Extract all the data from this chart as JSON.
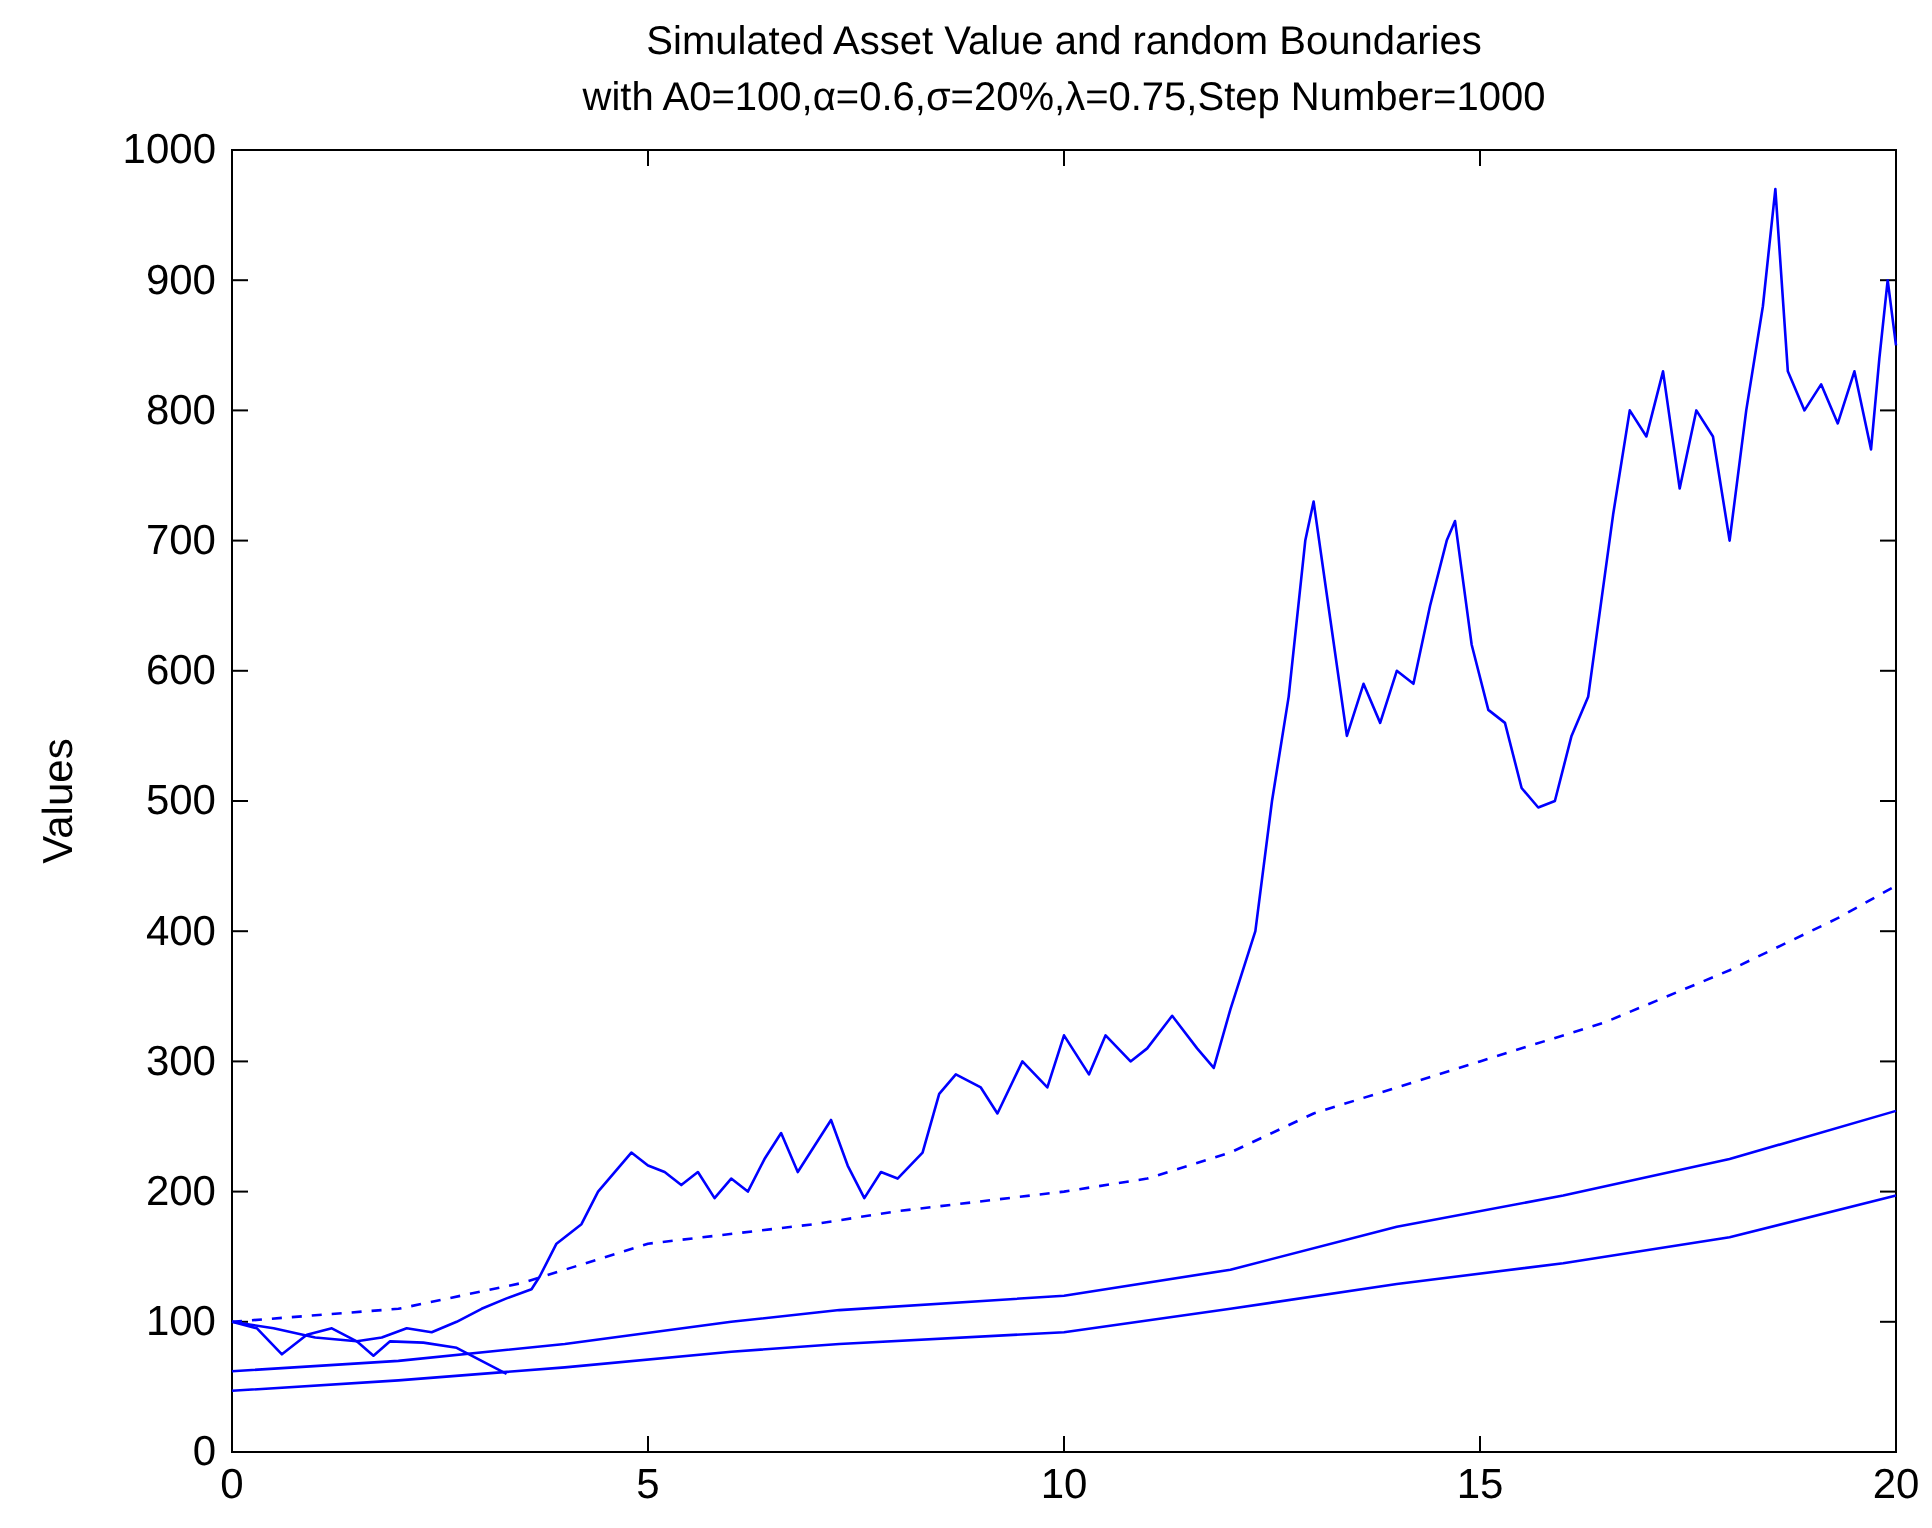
{
  "chart_data": {
    "type": "line",
    "title": "Simulated Asset Value and random Boundaries",
    "subtitle": "with A0=100,α=0.6,σ=20%,λ=0.75,Step Number=1000",
    "ylabel": "Values",
    "xlim": [
      0,
      20
    ],
    "ylim": [
      0,
      1000
    ],
    "xticks": [
      0,
      5,
      10,
      15,
      20
    ],
    "yticks": [
      0,
      100,
      200,
      300,
      400,
      500,
      600,
      700,
      800,
      900,
      1000
    ],
    "grid": false,
    "line_style": "solid",
    "marker": "none",
    "series": [
      {
        "color": "#0000ff",
        "x": [
          0,
          0.3,
          0.6,
          0.9,
          1.2,
          1.5,
          1.8,
          2.1,
          2.4,
          2.7,
          3.0,
          3.3,
          3.6,
          3.7,
          3.9,
          4.2,
          4.4,
          4.6,
          4.8,
          5.0,
          5.2,
          5.4,
          5.6,
          5.8,
          6.0,
          6.2,
          6.4,
          6.6,
          6.8,
          7.0,
          7.2,
          7.4,
          7.6,
          7.8,
          8.0,
          8.3,
          8.5,
          8.7,
          9.0,
          9.2,
          9.5,
          9.8,
          10.0,
          10.3,
          10.5,
          10.8,
          11.0,
          11.3,
          11.6,
          11.8,
          12.0,
          12.3,
          12.5,
          12.7,
          12.9,
          13.0,
          13.2,
          13.4,
          13.6,
          13.8,
          14.0,
          14.2,
          14.4,
          14.6,
          14.7,
          14.9,
          15.1,
          15.3,
          15.5,
          15.7,
          15.9,
          16.1,
          16.3,
          16.6,
          16.8,
          17.0,
          17.2,
          17.4,
          17.6,
          17.8,
          18.0,
          18.2,
          18.4,
          18.55,
          18.7,
          18.9,
          19.1,
          19.3,
          19.5,
          19.7,
          19.8,
          19.9,
          20
        ],
        "values": [
          100,
          95,
          75,
          90,
          95,
          85,
          88,
          95,
          92,
          100,
          110,
          118,
          125,
          135,
          160,
          175,
          200,
          215,
          230,
          220,
          215,
          205,
          215,
          195,
          210,
          200,
          225,
          245,
          215,
          235,
          255,
          220,
          195,
          215,
          210,
          230,
          275,
          290,
          280,
          260,
          300,
          280,
          320,
          290,
          320,
          300,
          310,
          335,
          310,
          295,
          340,
          400,
          500,
          580,
          700,
          730,
          640,
          550,
          590,
          560,
          600,
          590,
          650,
          700,
          715,
          620,
          570,
          560,
          510,
          495,
          500,
          550,
          580,
          720,
          800,
          780,
          830,
          740,
          800,
          780,
          700,
          800,
          880,
          970,
          830,
          800,
          820,
          790,
          830,
          770,
          840,
          900,
          850
        ]
      },
      {
        "color": "#0000ff",
        "line_style": "dashed",
        "x": [
          0,
          2,
          3.5,
          5,
          7,
          8,
          10,
          11,
          12,
          13,
          15,
          16.5,
          18,
          19.3,
          20
        ],
        "values": [
          100,
          110,
          130,
          160,
          175,
          185,
          200,
          210,
          230,
          260,
          300,
          330,
          370,
          410,
          435
        ]
      },
      {
        "color": "#0000ff",
        "x": [
          0,
          2,
          4,
          6,
          7.3,
          10,
          12,
          14,
          16,
          18,
          20
        ],
        "values": [
          62,
          70,
          83,
          100,
          109,
          120,
          140,
          173,
          197,
          225,
          262
        ]
      },
      {
        "color": "#0000ff",
        "x": [
          0,
          2,
          4,
          6,
          7.3,
          10,
          12,
          14,
          16,
          18,
          20
        ],
        "values": [
          47,
          55,
          65,
          77,
          83,
          92,
          110,
          129,
          145,
          165,
          197
        ]
      },
      {
        "color": "#0000ff",
        "x": [
          0,
          0.5,
          1.0,
          1.5,
          1.7,
          1.9,
          2.3,
          2.7,
          3.0,
          3.3
        ],
        "values": [
          100,
          95,
          88,
          85,
          74,
          85,
          84,
          80,
          70,
          60
        ]
      }
    ]
  }
}
